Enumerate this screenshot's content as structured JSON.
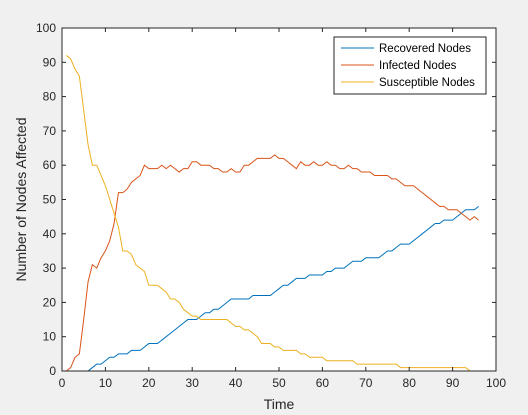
{
  "chart_data": {
    "type": "line",
    "title": "",
    "xlabel": "Time",
    "ylabel": "Number of Nodes Affected",
    "xlim": [
      0,
      100
    ],
    "ylim": [
      0,
      100
    ],
    "xticks": [
      0,
      10,
      20,
      30,
      40,
      50,
      60,
      70,
      80,
      90,
      100
    ],
    "yticks": [
      0,
      10,
      20,
      30,
      40,
      50,
      60,
      70,
      80,
      90,
      100
    ],
    "grid": false,
    "legend_position": "top-right",
    "series": [
      {
        "name": "Recovered Nodes",
        "color": "#0072bd",
        "x": [
          1,
          6,
          7,
          8,
          9,
          10,
          11,
          12,
          13,
          14,
          15,
          16,
          17,
          18,
          19,
          20,
          21,
          22,
          23,
          24,
          25,
          26,
          27,
          28,
          29,
          30,
          31,
          32,
          33,
          34,
          35,
          36,
          37,
          38,
          39,
          40,
          41,
          42,
          43,
          44,
          45,
          46,
          47,
          48,
          49,
          50,
          51,
          52,
          53,
          54,
          55,
          56,
          57,
          58,
          59,
          60,
          61,
          62,
          63,
          64,
          65,
          66,
          67,
          68,
          69,
          70,
          71,
          72,
          73,
          74,
          75,
          76,
          77,
          78,
          79,
          80,
          81,
          82,
          83,
          84,
          85,
          86,
          87,
          88,
          89,
          90,
          91,
          92,
          93,
          94,
          95,
          96
        ],
        "y": [
          0,
          0,
          1,
          2,
          2,
          3,
          4,
          4,
          5,
          5,
          5,
          6,
          6,
          6,
          7,
          8,
          8,
          8,
          9,
          10,
          11,
          12,
          13,
          14,
          15,
          15,
          15,
          16,
          17,
          17,
          18,
          18,
          19,
          20,
          21,
          21,
          21,
          21,
          21,
          22,
          22,
          22,
          22,
          22,
          23,
          24,
          25,
          25,
          26,
          27,
          27,
          27,
          28,
          28,
          28,
          28,
          29,
          29,
          30,
          30,
          30,
          31,
          32,
          32,
          32,
          33,
          33,
          33,
          33,
          34,
          35,
          35,
          36,
          37,
          37,
          37,
          38,
          39,
          40,
          41,
          42,
          43,
          43,
          44,
          44,
          44,
          45,
          46,
          47,
          47,
          47,
          48
        ]
      },
      {
        "name": "Infected Nodes",
        "color": "#d95319",
        "x": [
          1,
          2,
          3,
          4,
          5,
          6,
          7,
          8,
          9,
          10,
          11,
          12,
          13,
          14,
          15,
          16,
          17,
          18,
          19,
          20,
          21,
          22,
          23,
          24,
          25,
          26,
          27,
          28,
          29,
          30,
          31,
          32,
          33,
          34,
          35,
          36,
          37,
          38,
          39,
          40,
          41,
          42,
          43,
          44,
          45,
          46,
          47,
          48,
          49,
          50,
          51,
          52,
          53,
          54,
          55,
          56,
          57,
          58,
          59,
          60,
          61,
          62,
          63,
          64,
          65,
          66,
          67,
          68,
          69,
          70,
          71,
          72,
          73,
          74,
          75,
          76,
          77,
          78,
          79,
          80,
          81,
          82,
          83,
          84,
          85,
          86,
          87,
          88,
          89,
          90,
          91,
          92,
          93,
          94,
          95,
          96
        ],
        "y": [
          0,
          1,
          4,
          5,
          15,
          26,
          31,
          30,
          33,
          35,
          38,
          43,
          52,
          52,
          53,
          55,
          56,
          57,
          60,
          59,
          59,
          59,
          60,
          59,
          60,
          59,
          58,
          59,
          59,
          61,
          61,
          60,
          60,
          60,
          59,
          59,
          58,
          58,
          59,
          58,
          58,
          60,
          60,
          61,
          62,
          62,
          62,
          62,
          63,
          62,
          62,
          61,
          60,
          59,
          61,
          60,
          60,
          61,
          60,
          60,
          61,
          60,
          60,
          59,
          59,
          60,
          59,
          59,
          58,
          58,
          58,
          57,
          57,
          57,
          57,
          56,
          56,
          55,
          54,
          54,
          54,
          53,
          52,
          51,
          50,
          49,
          48,
          48,
          47,
          47,
          47,
          46,
          45,
          44,
          45,
          44
        ]
      },
      {
        "name": "Susceptible Nodes",
        "color": "#edb120",
        "x": [
          1,
          2,
          3,
          4,
          5,
          6,
          7,
          8,
          9,
          10,
          11,
          12,
          13,
          14,
          15,
          16,
          17,
          18,
          19,
          20,
          21,
          22,
          23,
          24,
          25,
          26,
          27,
          28,
          29,
          30,
          31,
          32,
          33,
          34,
          35,
          36,
          37,
          38,
          39,
          40,
          41,
          42,
          43,
          44,
          45,
          46,
          47,
          48,
          49,
          50,
          51,
          52,
          53,
          54,
          55,
          56,
          57,
          58,
          59,
          60,
          61,
          62,
          63,
          64,
          65,
          66,
          67,
          68,
          69,
          70,
          71,
          72,
          73,
          74,
          75,
          76,
          77,
          78,
          79,
          80,
          81,
          82,
          83,
          84,
          85,
          86,
          87,
          88,
          89,
          90,
          91,
          92,
          93,
          94,
          95,
          96
        ],
        "y": [
          92,
          91,
          88,
          86,
          76,
          66,
          60,
          60,
          57,
          54,
          50,
          46,
          42,
          35,
          35,
          34,
          31,
          30,
          29,
          25,
          25,
          25,
          24,
          23,
          21,
          21,
          20,
          18,
          17,
          16,
          16,
          15,
          15,
          15,
          15,
          15,
          15,
          15,
          14,
          13,
          13,
          12,
          12,
          11,
          10,
          8,
          8,
          8,
          7,
          7,
          6,
          6,
          6,
          6,
          5,
          5,
          4,
          4,
          4,
          4,
          3,
          3,
          3,
          3,
          3,
          3,
          3,
          2,
          2,
          2,
          2,
          2,
          2,
          2,
          2,
          2,
          2,
          1,
          1,
          1,
          1,
          1,
          1,
          1,
          1,
          1,
          1,
          1,
          1,
          1,
          1,
          1,
          1,
          0,
          0,
          0
        ]
      }
    ]
  }
}
